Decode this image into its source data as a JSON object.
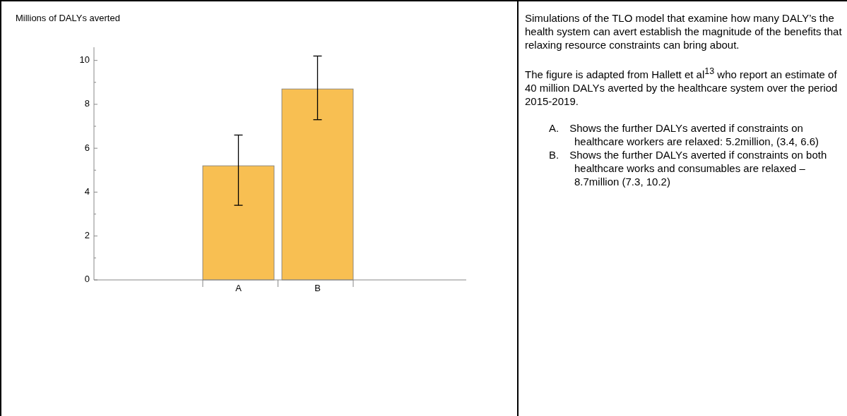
{
  "chart_data": [
    {
      "type": "bar",
      "ylabel": "Millions of DALYs averted",
      "categories": [
        "A",
        "B"
      ],
      "values": [
        5.2,
        8.7
      ],
      "errors": [
        [
          3.4,
          6.6
        ],
        [
          7.3,
          10.2
        ]
      ],
      "color": "#f8bf52",
      "ylim": [
        0,
        10.6
      ],
      "yticks": [
        0,
        {
          "value": 1,
          "label": null
        },
        2,
        {
          "value": 3,
          "label": null
        },
        4,
        {
          "value": 5,
          "label": null
        },
        6,
        {
          "value": 7,
          "label": null
        },
        8,
        {
          "value": 9,
          "label": null
        },
        10
      ],
      "grid": false
    },
    {
      "type": "other",
      "annotations": [
        "Simulations of the TLO model that examine how many DALY’s the health system can avert establish the magnitude of the benefits that relaxing resource constraints can bring about.",
        "The figure is adapted from Hallett et al$^{13}$ who report an estimate of 40 million DALYs averted by the healthcare system over the period 2015-2019.",
        "A. Shows the further DALYs averted if constraints on healthcare workers are relaxed: 5.2million, (3.4,  6.6)",
        "B. Shows the further DALYs averted if constraints on both  healthcare works and consumables are relaxed – 8.7million (7.3, 10.2)"
      ]
    }
  ]
}
